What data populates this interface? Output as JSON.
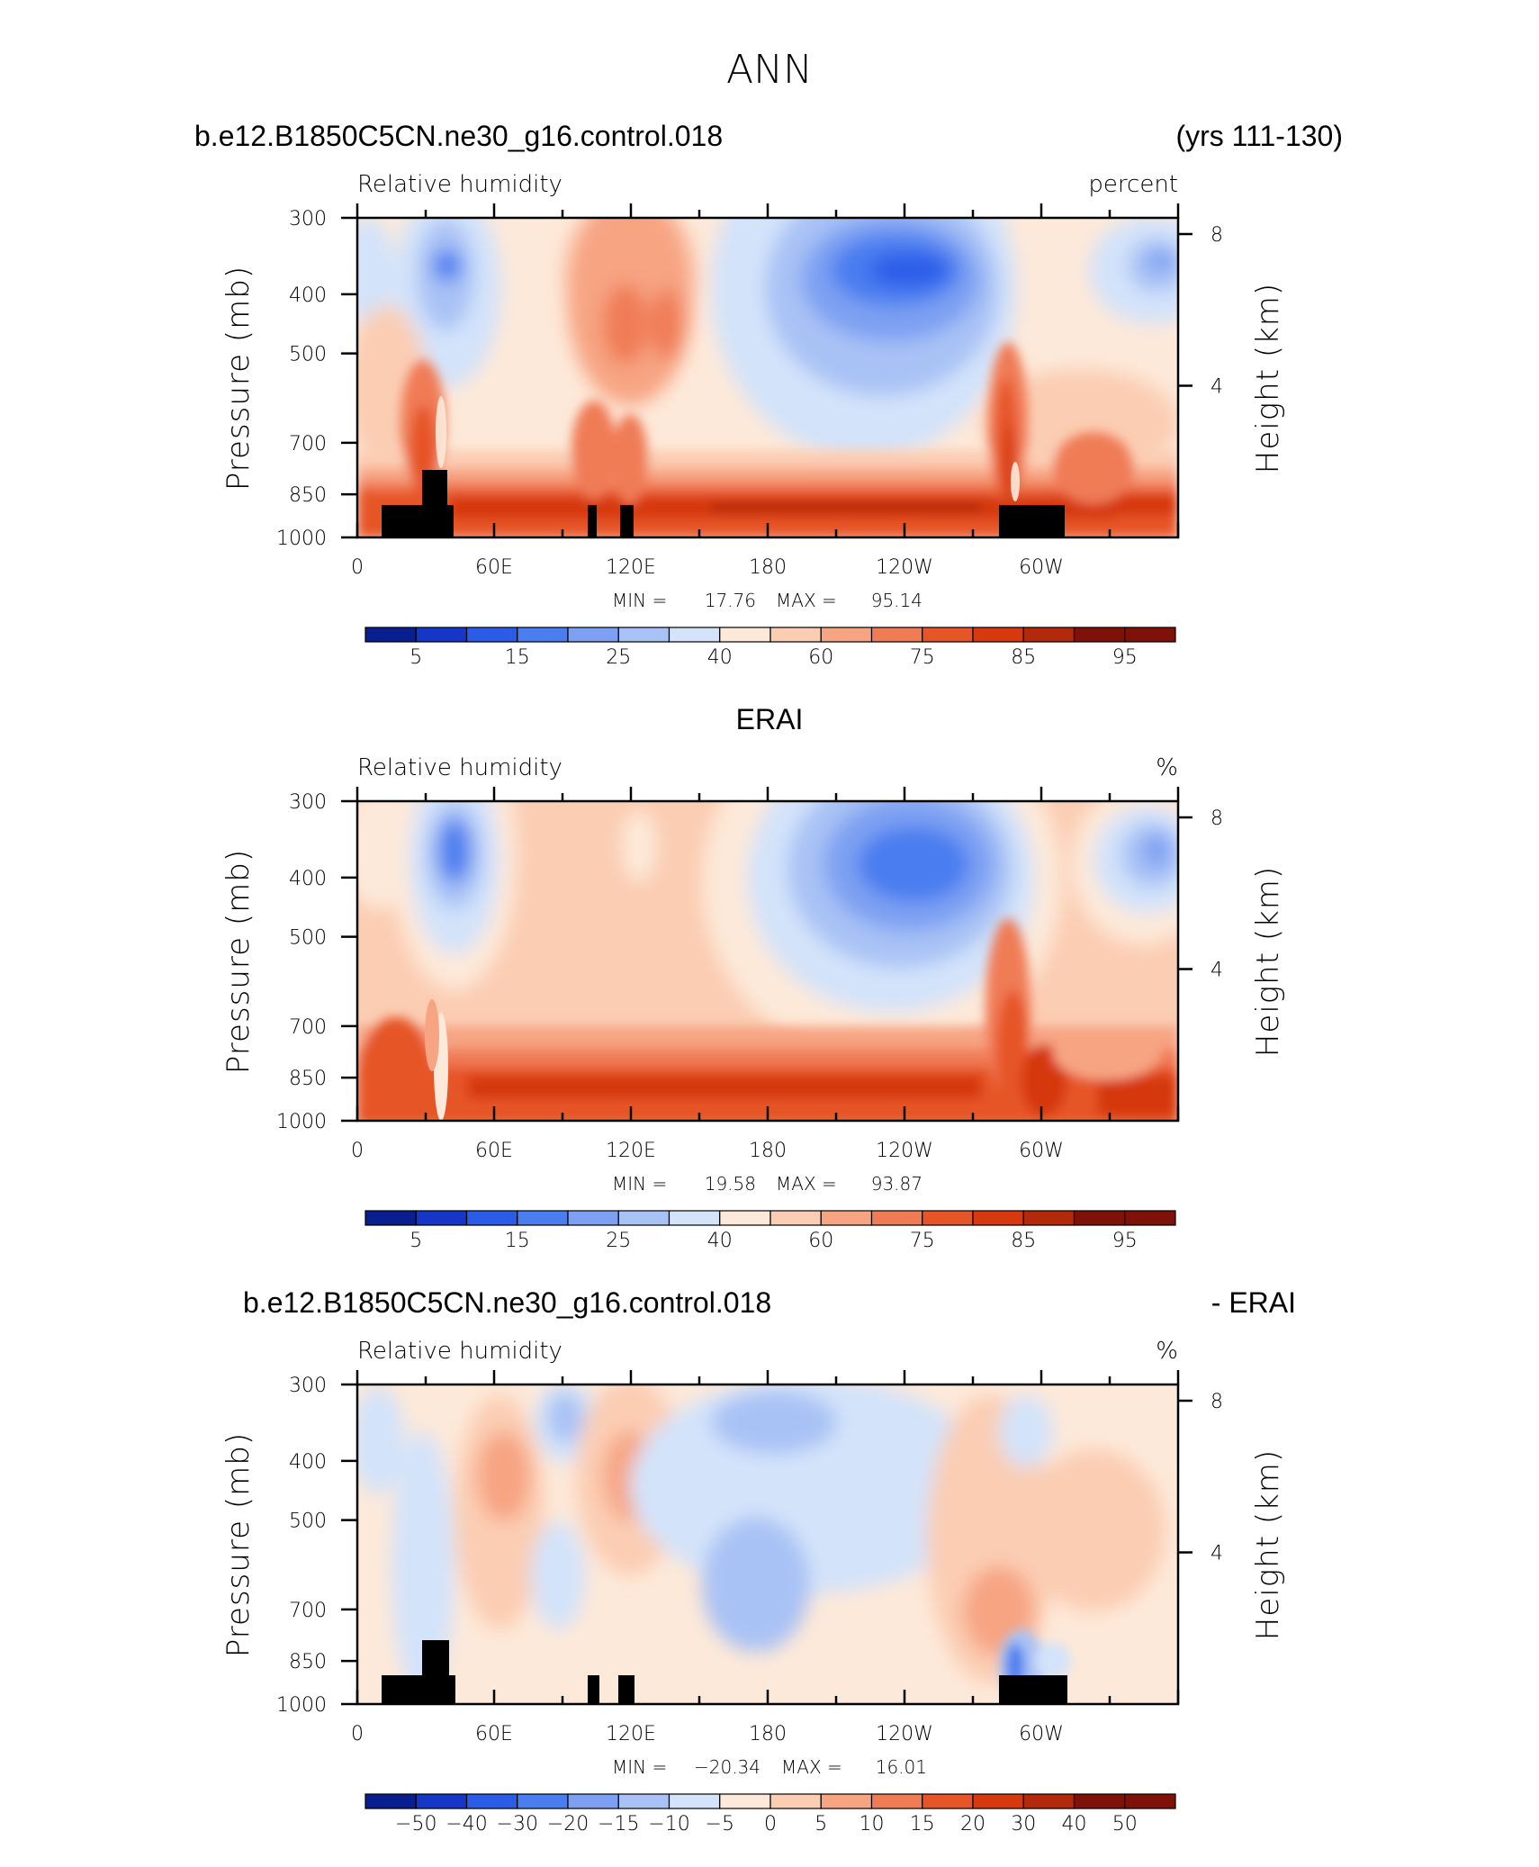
{
  "figure": {
    "title": "ANN"
  },
  "chart_data": [
    {
      "type": "heatmap",
      "case_label": "b.e12.B1850C5CN.ne30_g16.control.018",
      "years_label": "(yrs 111-130)",
      "variable_label": "Relative humidity",
      "units_label": "percent",
      "ylabel": "Pressure (mb)",
      "y2label": "Height (km)",
      "x_ticks": [
        "0",
        "60E",
        "120E",
        "180",
        "120W",
        "60W"
      ],
      "y_ticks": [
        "300",
        "400",
        "500",
        "700",
        "850",
        "1000"
      ],
      "y2_ticks": [
        "8",
        "4"
      ],
      "stats": {
        "min_label": "MIN =",
        "min": "17.76",
        "max_label": "MAX =",
        "max": "95.14"
      },
      "colorbar": {
        "labels": [
          "5",
          "15",
          "25",
          "40",
          "60",
          "75",
          "85",
          "95"
        ],
        "colors": [
          "#0a1f8f",
          "#1536c7",
          "#2a5ce8",
          "#4a7df0",
          "#7da0f2",
          "#a9c2f5",
          "#d3e3fa",
          "#fde9d9",
          "#fbcdb3",
          "#f7a483",
          "#f07c56",
          "#e65528",
          "#d63810",
          "#b22a0a",
          "#7e1108"
        ]
      },
      "terrain": true
    },
    {
      "type": "heatmap",
      "case_label": "ERAI",
      "variable_label": "Relative humidity",
      "units_label": "%",
      "ylabel": "Pressure (mb)",
      "y2label": "Height (km)",
      "x_ticks": [
        "0",
        "60E",
        "120E",
        "180",
        "120W",
        "60W"
      ],
      "y_ticks": [
        "300",
        "400",
        "500",
        "700",
        "850",
        "1000"
      ],
      "y2_ticks": [
        "8",
        "4"
      ],
      "stats": {
        "min_label": "MIN =",
        "min": "19.58",
        "max_label": "MAX =",
        "max": "93.87"
      },
      "colorbar": {
        "labels": [
          "5",
          "15",
          "25",
          "40",
          "60",
          "75",
          "85",
          "95"
        ],
        "colors": [
          "#0a1f8f",
          "#1536c7",
          "#2a5ce8",
          "#4a7df0",
          "#7da0f2",
          "#a9c2f5",
          "#d3e3fa",
          "#fde9d9",
          "#fbcdb3",
          "#f7a483",
          "#f07c56",
          "#e65528",
          "#d63810",
          "#b22a0a",
          "#7e1108"
        ]
      },
      "terrain": false
    },
    {
      "type": "heatmap",
      "case_label": "b.e12.B1850C5CN.ne30_g16.control.018",
      "diff_label": "- ERAI",
      "variable_label": "Relative humidity",
      "units_label": "%",
      "ylabel": "Pressure (mb)",
      "y2label": "Height (km)",
      "x_ticks": [
        "0",
        "60E",
        "120E",
        "180",
        "120W",
        "60W"
      ],
      "y_ticks": [
        "300",
        "400",
        "500",
        "700",
        "850",
        "1000"
      ],
      "y2_ticks": [
        "8",
        "4"
      ],
      "stats": {
        "min_label": "MIN =",
        "min": "−20.34",
        "max_label": "MAX =",
        "max": "16.01"
      },
      "colorbar": {
        "labels": [
          "−50",
          "−40",
          "−30",
          "−20",
          "−15",
          "−10",
          "−5",
          "0",
          "5",
          "10",
          "15",
          "20",
          "30",
          "40",
          "50"
        ],
        "colors": [
          "#0a1f8f",
          "#1536c7",
          "#2a5ce8",
          "#4a7df0",
          "#7da0f2",
          "#a9c2f5",
          "#d3e3fa",
          "#fde9d9",
          "#fbcdb3",
          "#f7a483",
          "#f07c56",
          "#e65528",
          "#d63810",
          "#b22a0a",
          "#7e1108",
          "#7e1108"
        ]
      },
      "terrain": true
    }
  ]
}
